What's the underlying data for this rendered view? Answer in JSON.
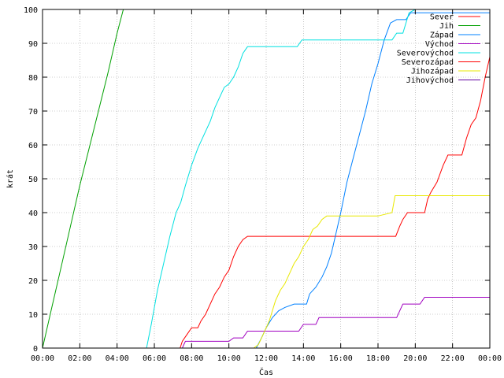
{
  "chart_data": {
    "type": "line",
    "title": "",
    "xlabel": "Čas",
    "ylabel": "krát",
    "xlim": [
      "00:00",
      "24:00"
    ],
    "ylim": [
      0,
      100
    ],
    "grid": true,
    "legend_position": "top-right",
    "x_ticks": [
      "00:00",
      "02:00",
      "04:00",
      "06:00",
      "08:00",
      "10:00",
      "12:00",
      "14:00",
      "16:00",
      "18:00",
      "20:00",
      "22:00",
      "00:00"
    ],
    "y_ticks": [
      "0",
      "10",
      "20",
      "30",
      "40",
      "50",
      "60",
      "70",
      "80",
      "90",
      "100"
    ],
    "series": [
      {
        "name": "Sever",
        "color": "#ff0000",
        "points": [
          [
            "07:23",
            0
          ],
          [
            "07:30",
            2
          ],
          [
            "07:45",
            4
          ],
          [
            "08:00",
            6
          ],
          [
            "08:20",
            6
          ],
          [
            "08:30",
            8
          ],
          [
            "08:45",
            10
          ],
          [
            "09:00",
            13
          ],
          [
            "09:15",
            16
          ],
          [
            "09:30",
            18
          ],
          [
            "09:45",
            21
          ],
          [
            "10:00",
            23
          ],
          [
            "10:15",
            27
          ],
          [
            "10:30",
            30
          ],
          [
            "10:45",
            32
          ],
          [
            "11:00",
            33
          ],
          [
            "13:00",
            33
          ],
          [
            "15:00",
            33
          ],
          [
            "17:00",
            33
          ],
          [
            "18:57",
            33
          ],
          [
            "19:10",
            36
          ],
          [
            "19:20",
            38
          ],
          [
            "19:35",
            40
          ],
          [
            "20:30",
            40
          ],
          [
            "20:40",
            44
          ],
          [
            "20:50",
            46
          ],
          [
            "21:10",
            49
          ],
          [
            "21:30",
            54
          ],
          [
            "21:45",
            57
          ],
          [
            "22:30",
            57
          ],
          [
            "22:45",
            62
          ],
          [
            "23:00",
            66
          ],
          [
            "23:15",
            68
          ],
          [
            "23:30",
            73
          ],
          [
            "23:45",
            80
          ],
          [
            "24:00",
            86
          ]
        ]
      },
      {
        "name": "Jih",
        "color": "#00a000",
        "points": [
          [
            "00:00",
            0
          ],
          [
            "00:30",
            12
          ],
          [
            "01:00",
            24
          ],
          [
            "01:30",
            36
          ],
          [
            "02:00",
            48
          ],
          [
            "02:30",
            59
          ],
          [
            "03:00",
            70
          ],
          [
            "03:30",
            81
          ],
          [
            "04:00",
            93
          ],
          [
            "04:20",
            100
          ]
        ]
      },
      {
        "name": "Západ",
        "color": "#0080ff",
        "points": [
          [
            "11:28",
            0
          ],
          [
            "11:45",
            3
          ],
          [
            "12:00",
            6
          ],
          [
            "12:20",
            9
          ],
          [
            "12:40",
            11
          ],
          [
            "13:00",
            12
          ],
          [
            "13:30",
            13
          ],
          [
            "14:10",
            13
          ],
          [
            "14:20",
            16
          ],
          [
            "14:40",
            18
          ],
          [
            "15:00",
            21
          ],
          [
            "15:15",
            24
          ],
          [
            "15:30",
            28
          ],
          [
            "15:45",
            34
          ],
          [
            "16:00",
            40
          ],
          [
            "16:20",
            49
          ],
          [
            "16:40",
            56
          ],
          [
            "17:00",
            63
          ],
          [
            "17:20",
            70
          ],
          [
            "17:40",
            78
          ],
          [
            "18:00",
            84
          ],
          [
            "18:20",
            91
          ],
          [
            "18:40",
            96
          ],
          [
            "19:00",
            97
          ],
          [
            "19:30",
            97
          ],
          [
            "19:45",
            99
          ],
          [
            "24:00",
            99
          ]
        ]
      },
      {
        "name": "Východ",
        "color": "#a000c0",
        "points": [
          [
            "07:30",
            0
          ],
          [
            "07:40",
            2
          ],
          [
            "08:30",
            2
          ],
          [
            "10:00",
            2
          ],
          [
            "10:15",
            3
          ],
          [
            "10:45",
            3
          ],
          [
            "11:00",
            5
          ],
          [
            "11:40",
            5
          ],
          [
            "12:00",
            5
          ],
          [
            "13:45",
            5
          ],
          [
            "14:00",
            7
          ],
          [
            "14:40",
            7
          ],
          [
            "14:50",
            9
          ],
          [
            "16:00",
            9
          ],
          [
            "18:30",
            9
          ],
          [
            "19:00",
            9
          ],
          [
            "19:10",
            11
          ],
          [
            "19:20",
            13
          ],
          [
            "20:15",
            13
          ],
          [
            "20:30",
            15
          ],
          [
            "24:00",
            15
          ]
        ]
      },
      {
        "name": "Severovýchod",
        "color": "#00e0e0",
        "points": [
          [
            "05:35",
            0
          ],
          [
            "05:50",
            7
          ],
          [
            "06:10",
            17
          ],
          [
            "06:30",
            25
          ],
          [
            "06:50",
            33
          ],
          [
            "07:10",
            40
          ],
          [
            "07:25",
            43
          ],
          [
            "07:40",
            48
          ],
          [
            "08:00",
            54
          ],
          [
            "08:20",
            59
          ],
          [
            "08:40",
            63
          ],
          [
            "09:00",
            67
          ],
          [
            "09:15",
            71
          ],
          [
            "09:30",
            74
          ],
          [
            "09:45",
            77
          ],
          [
            "10:00",
            78
          ],
          [
            "10:15",
            80
          ],
          [
            "10:30",
            83
          ],
          [
            "10:45",
            87
          ],
          [
            "11:00",
            89
          ],
          [
            "12:00",
            89
          ],
          [
            "13:40",
            89
          ],
          [
            "13:55",
            91
          ],
          [
            "16:00",
            91
          ],
          [
            "18:45",
            91
          ],
          [
            "19:00",
            93
          ],
          [
            "19:20",
            93
          ],
          [
            "19:40",
            99
          ],
          [
            "20:00",
            100
          ]
        ]
      },
      {
        "name": "Severozápad",
        "color": "#ff0000",
        "points": []
      },
      {
        "name": "Jihozápad",
        "color": "#e8e800",
        "points": [
          [
            "11:20",
            0
          ],
          [
            "11:35",
            1
          ],
          [
            "11:50",
            4
          ],
          [
            "12:10",
            8
          ],
          [
            "12:30",
            14
          ],
          [
            "12:45",
            17
          ],
          [
            "13:00",
            19
          ],
          [
            "13:15",
            22
          ],
          [
            "13:30",
            25
          ],
          [
            "13:45",
            27
          ],
          [
            "14:00",
            30
          ],
          [
            "14:15",
            32
          ],
          [
            "14:30",
            35
          ],
          [
            "14:45",
            36
          ],
          [
            "15:00",
            38
          ],
          [
            "15:15",
            39
          ],
          [
            "16:00",
            39
          ],
          [
            "18:00",
            39
          ],
          [
            "18:45",
            40
          ],
          [
            "18:55",
            45
          ],
          [
            "20:00",
            45
          ],
          [
            "22:00",
            45
          ],
          [
            "24:00",
            45
          ]
        ]
      },
      {
        "name": "Jihovýchod",
        "color": "#6000a0",
        "points": []
      }
    ]
  }
}
